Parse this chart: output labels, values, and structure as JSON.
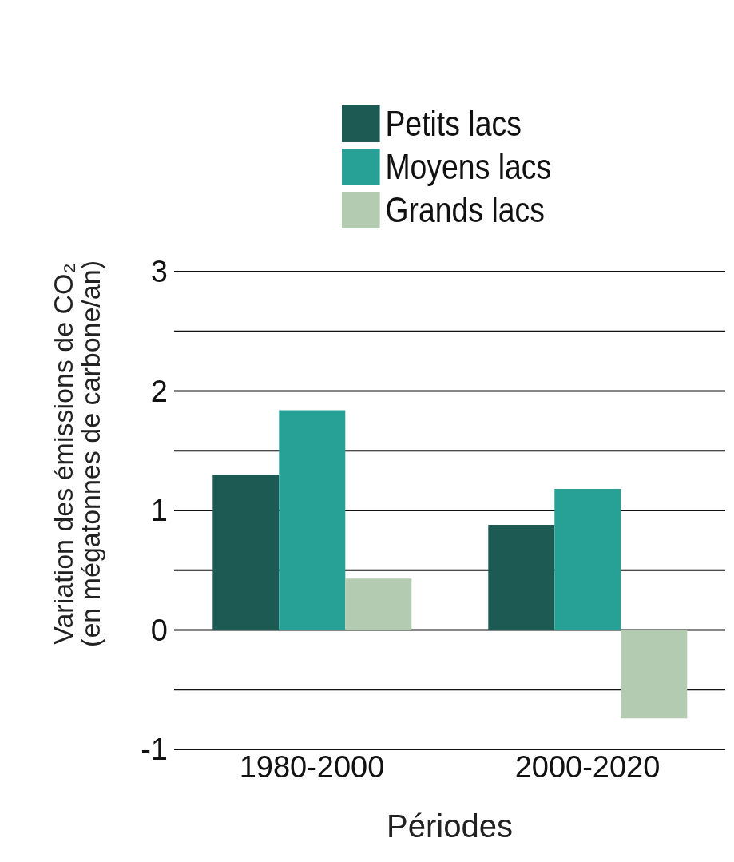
{
  "chart_data": {
    "type": "bar",
    "xlabel": "Périodes",
    "ylabel": "Variation des émissions de CO₂\n(en mégatonnes de carbone/an)",
    "categories": [
      "1980-2000",
      "2000-2020"
    ],
    "series": [
      {
        "name": "Petits lacs",
        "color": "#1d5a54",
        "values": [
          1.3,
          0.88
        ]
      },
      {
        "name": "Moyens lacs",
        "color": "#27a195",
        "values": [
          1.84,
          1.18
        ]
      },
      {
        "name": "Grands lacs",
        "color": "#b3cbb0",
        "values": [
          0.43,
          -0.74
        ]
      }
    ],
    "ylim": [
      -1,
      3
    ],
    "yticks": [
      -1,
      {
        "value": -0.5,
        "label": null
      },
      0,
      {
        "value": 0.5,
        "label": null
      },
      1,
      {
        "value": 1.5,
        "label": null
      },
      2,
      {
        "value": 2.5,
        "label": null
      },
      3
    ],
    "grid": "y",
    "legend": "top left"
  }
}
